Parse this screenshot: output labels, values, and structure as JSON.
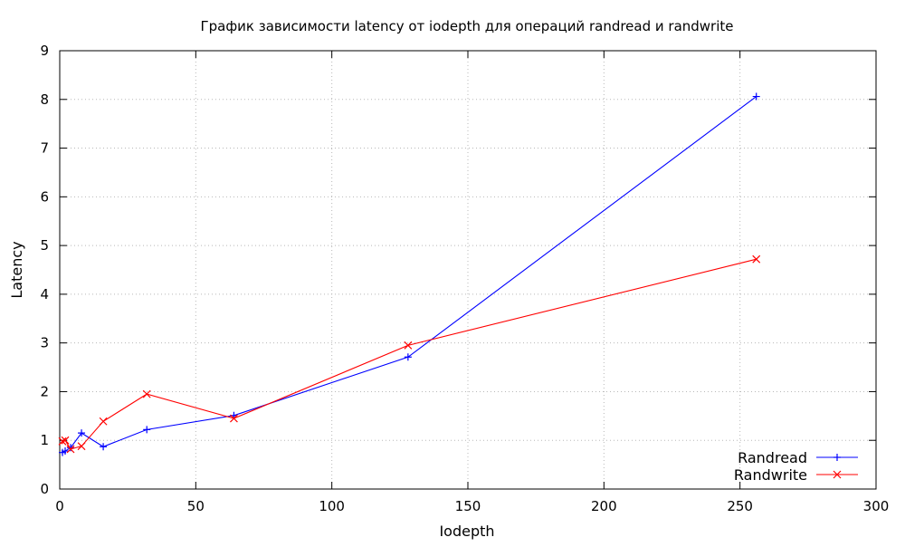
{
  "chart_data": {
    "type": "line",
    "title": "График зависимости latency от iodepth для операций randread и randwrite",
    "xlabel": "Iodepth",
    "ylabel": "Latency",
    "xlim": [
      0,
      300
    ],
    "ylim": [
      0,
      9
    ],
    "x_ticks": [
      0,
      50,
      100,
      150,
      200,
      250,
      300
    ],
    "y_ticks": [
      0,
      1,
      2,
      3,
      4,
      5,
      6,
      7,
      8,
      9
    ],
    "grid": true,
    "legend_position": "bottom-right",
    "series": [
      {
        "name": "Randread",
        "color": "#0000ff",
        "marker": "plus",
        "x": [
          1,
          2,
          4,
          8,
          16,
          32,
          64,
          128,
          256
        ],
        "y": [
          0.75,
          0.78,
          0.85,
          1.15,
          0.87,
          1.22,
          1.51,
          2.71,
          8.06
        ]
      },
      {
        "name": "Randwrite",
        "color": "#ff0000",
        "marker": "cross",
        "x": [
          1,
          2,
          4,
          8,
          16,
          32,
          64,
          128,
          256
        ],
        "y": [
          0.98,
          1.0,
          0.82,
          0.88,
          1.39,
          1.95,
          1.45,
          2.95,
          4.72
        ]
      }
    ]
  }
}
